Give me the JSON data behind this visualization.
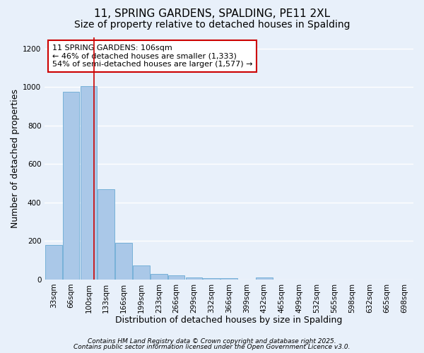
{
  "title1": "11, SPRING GARDENS, SPALDING, PE11 2XL",
  "title2": "Size of property relative to detached houses in Spalding",
  "xlabel": "Distribution of detached houses by size in Spalding",
  "ylabel": "Number of detached properties",
  "categories": [
    "33sqm",
    "66sqm",
    "100sqm",
    "133sqm",
    "166sqm",
    "199sqm",
    "233sqm",
    "266sqm",
    "299sqm",
    "332sqm",
    "366sqm",
    "399sqm",
    "432sqm",
    "465sqm",
    "499sqm",
    "532sqm",
    "565sqm",
    "598sqm",
    "632sqm",
    "665sqm",
    "698sqm"
  ],
  "values": [
    180,
    975,
    1005,
    470,
    190,
    72,
    28,
    20,
    12,
    8,
    5,
    0,
    10,
    0,
    0,
    0,
    0,
    0,
    0,
    0,
    0
  ],
  "bar_color": "#aac8e8",
  "bar_edge_color": "#6aaad4",
  "background_color": "#e8f0fa",
  "grid_color": "#ffffff",
  "red_line_x": 2.32,
  "annotation_text": "11 SPRING GARDENS: 106sqm\n← 46% of detached houses are smaller (1,333)\n54% of semi-detached houses are larger (1,577) →",
  "annotation_box_color": "#ffffff",
  "annotation_box_edge_color": "#cc0000",
  "footer1": "Contains HM Land Registry data © Crown copyright and database right 2025.",
  "footer2": "Contains public sector information licensed under the Open Government Licence v3.0.",
  "ylim": [
    0,
    1260
  ],
  "yticks": [
    0,
    200,
    400,
    600,
    800,
    1000,
    1200
  ],
  "title_fontsize": 11,
  "subtitle_fontsize": 10,
  "axis_fontsize": 9,
  "tick_fontsize": 7.5,
  "annotation_fontsize": 8,
  "footer_fontsize": 6.5
}
